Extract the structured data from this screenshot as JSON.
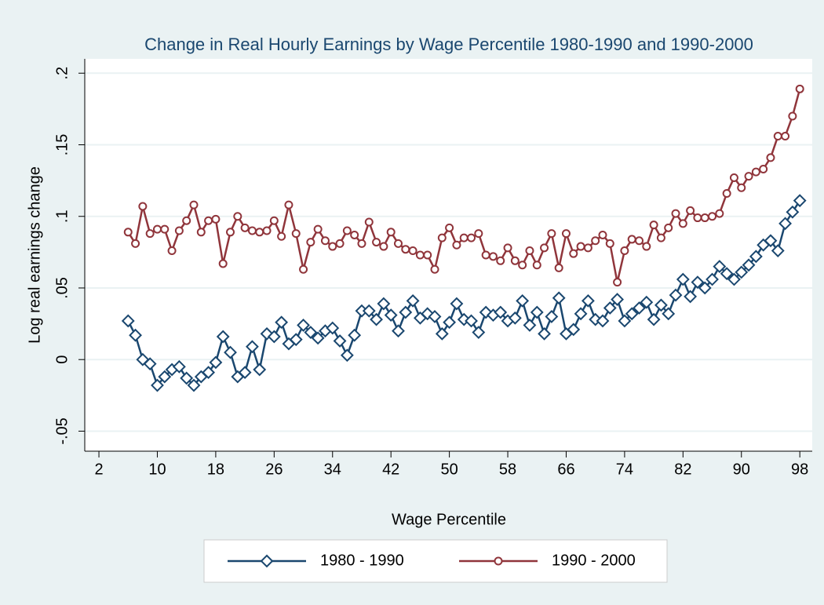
{
  "chart_data": {
    "type": "line",
    "title": "Change in Real Hourly Earnings by Wage Percentile 1980-1990 and 1990-2000",
    "xlabel": "Wage Percentile",
    "ylabel": "Log real earnings change",
    "x": [
      6,
      7,
      8,
      9,
      10,
      11,
      12,
      13,
      14,
      15,
      16,
      17,
      18,
      19,
      20,
      21,
      22,
      23,
      24,
      25,
      26,
      27,
      28,
      29,
      30,
      31,
      32,
      33,
      34,
      35,
      36,
      37,
      38,
      39,
      40,
      41,
      42,
      43,
      44,
      45,
      46,
      47,
      48,
      49,
      50,
      51,
      52,
      53,
      54,
      55,
      56,
      57,
      58,
      59,
      60,
      61,
      62,
      63,
      64,
      65,
      66,
      67,
      68,
      69,
      70,
      71,
      72,
      73,
      74,
      75,
      76,
      77,
      78,
      79,
      80,
      81,
      82,
      83,
      84,
      85,
      86,
      87,
      88,
      89,
      90,
      91,
      92,
      93,
      94,
      95,
      96,
      97,
      98
    ],
    "series": [
      {
        "name": "1980 - 1990",
        "color": "#1a476f",
        "marker": "diamond",
        "values": [
          0.027,
          0.017,
          0,
          -0.003,
          -0.018,
          -0.012,
          -0.007,
          -0.005,
          -0.013,
          -0.018,
          -0.012,
          -0.009,
          -0.002,
          0.016,
          0.005,
          -0.012,
          -0.009,
          0.009,
          -0.007,
          0.018,
          0.016,
          0.026,
          0.011,
          0.014,
          0.024,
          0.019,
          0.015,
          0.02,
          0.022,
          0.013,
          0.003,
          0.017,
          0.034,
          0.034,
          0.028,
          0.039,
          0.031,
          0.02,
          0.033,
          0.041,
          0.029,
          0.032,
          0.03,
          0.018,
          0.026,
          0.039,
          0.028,
          0.027,
          0.019,
          0.033,
          0.031,
          0.033,
          0.027,
          0.029,
          0.041,
          0.024,
          0.033,
          0.018,
          0.03,
          0.043,
          0.018,
          0.021,
          0.032,
          0.041,
          0.028,
          0.027,
          0.036,
          0.042,
          0.027,
          0.032,
          0.036,
          0.04,
          0.028,
          0.038,
          0.032,
          0.045,
          0.056,
          0.044,
          0.054,
          0.05,
          0.056,
          0.065,
          0.06,
          0.056,
          0.061,
          0.066,
          0.072,
          0.08,
          0.083,
          0.076,
          0.095,
          0.103,
          0.111
        ]
      },
      {
        "name": "1990 - 2000",
        "color": "#90353b",
        "marker": "circle",
        "values": [
          0.089,
          0.081,
          0.107,
          0.088,
          0.091,
          0.091,
          0.076,
          0.09,
          0.097,
          0.108,
          0.089,
          0.097,
          0.098,
          0.067,
          0.089,
          0.1,
          0.092,
          0.09,
          0.089,
          0.09,
          0.097,
          0.086,
          0.108,
          0.088,
          0.063,
          0.082,
          0.091,
          0.083,
          0.079,
          0.081,
          0.09,
          0.087,
          0.081,
          0.096,
          0.082,
          0.079,
          0.089,
          0.081,
          0.077,
          0.076,
          0.073,
          0.073,
          0.063,
          0.085,
          0.092,
          0.08,
          0.085,
          0.085,
          0.088,
          0.073,
          0.072,
          0.069,
          0.078,
          0.069,
          0.066,
          0.076,
          0.066,
          0.078,
          0.088,
          0.064,
          0.088,
          0.074,
          0.079,
          0.078,
          0.083,
          0.087,
          0.081,
          0.054,
          0.076,
          0.084,
          0.083,
          0.079,
          0.094,
          0.085,
          0.092,
          0.102,
          0.095,
          0.104,
          0.099,
          0.099,
          0.1,
          0.102,
          0.116,
          0.127,
          0.12,
          0.128,
          0.131,
          0.133,
          0.141,
          0.156,
          0.156,
          0.17,
          0.189
        ]
      }
    ],
    "xlim": [
      0.06,
      99.7
    ],
    "xticks": [
      2,
      10,
      18,
      26,
      34,
      42,
      50,
      58,
      66,
      74,
      82,
      90,
      98
    ],
    "ylim": [
      -0.064,
      0.21
    ],
    "yticks": [
      {
        "value": -0.05,
        "label": "-.05"
      },
      0,
      {
        "value": 0.05,
        "label": ".05"
      },
      {
        "value": 0.1,
        "label": ".1"
      },
      {
        "value": 0.15,
        "label": ".15"
      },
      {
        "value": 0.2,
        "label": ".2"
      }
    ],
    "grid": true,
    "legend": "bottom"
  }
}
